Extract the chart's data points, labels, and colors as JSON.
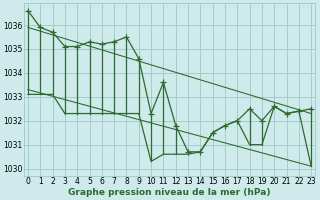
{
  "xlabel": "Graphe pression niveau de la mer (hPa)",
  "bg_color": "#ceeaea",
  "grid_color": "#9ec8c8",
  "line_color": "#2d6a2d",
  "hours": [
    0,
    1,
    2,
    3,
    4,
    5,
    6,
    7,
    8,
    9,
    10,
    11,
    12,
    13,
    14,
    15,
    16,
    17,
    18,
    19,
    20,
    21,
    22,
    23
  ],
  "pressure_high": [
    1036.6,
    1035.9,
    1035.7,
    1035.1,
    1035.1,
    1035.3,
    1035.2,
    1035.3,
    1035.5,
    1034.6,
    1032.3,
    1033.6,
    1031.8,
    1030.7,
    1030.7,
    1031.5,
    1031.8,
    1032.0,
    1032.5,
    1032.0,
    1032.6,
    1032.3,
    1032.4,
    1032.5
  ],
  "pressure_low": [
    1033.1,
    1033.1,
    1033.1,
    1032.3,
    1032.3,
    1032.3,
    1032.3,
    1032.3,
    1032.3,
    1032.3,
    1030.3,
    1030.6,
    1030.6,
    1030.6,
    1030.7,
    1031.5,
    1031.8,
    1032.0,
    1031.0,
    1031.0,
    1032.6,
    1032.3,
    1032.4,
    1030.1
  ],
  "trend1_x": [
    0,
    23
  ],
  "trend1_y": [
    1035.9,
    1032.3
  ],
  "trend2_x": [
    0,
    23
  ],
  "trend2_y": [
    1033.3,
    1030.1
  ],
  "ylim": [
    1029.7,
    1036.9
  ],
  "yticks": [
    1030,
    1031,
    1032,
    1033,
    1034,
    1035,
    1036
  ],
  "xlim": [
    -0.3,
    23.3
  ],
  "lw": 0.9,
  "marker_size": 4,
  "tick_fontsize": 5.5,
  "label_fontsize": 6.5
}
